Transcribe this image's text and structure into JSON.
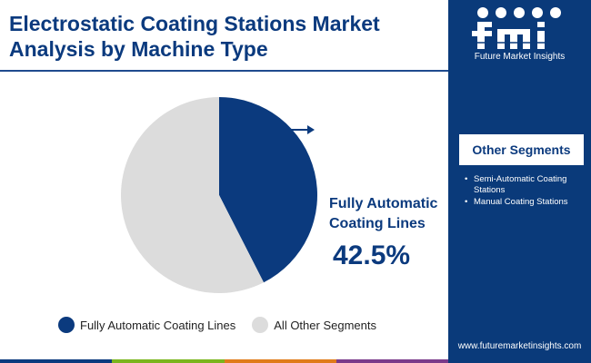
{
  "title": "Electrostatic Coating Stations Market Analysis by Machine Type",
  "colors": {
    "primary": "#0b3a7e",
    "other_segments": "#dcdcdc",
    "sidebar": "#0a3a7a"
  },
  "chart_data": {
    "type": "pie",
    "title": "Electrostatic Coating Stations Market Analysis by Machine Type",
    "slices": [
      {
        "label": "Fully Automatic Coating Lines",
        "value": 42.5,
        "color": "#0b3a7e"
      },
      {
        "label": "All Other Segments",
        "value": 57.5,
        "color": "#dcdcdc"
      }
    ],
    "callout": {
      "label": "Fully Automatic Coating Lines",
      "value_text": "42.5%"
    },
    "legend": [
      "Fully Automatic Coating Lines",
      "All Other Segments"
    ],
    "legend_position": "bottom"
  },
  "sidebar": {
    "logo_text": "Future Market Insights",
    "other_segments_title": "Other Segments",
    "other_segments": [
      "Semi-Automatic Coating Stations",
      "Manual Coating Stations"
    ],
    "website": "www.futuremarketinsights.com"
  },
  "bottom_bar_colors": [
    "#0b3a7e",
    "#7ab51d",
    "#e07b1a",
    "#7a3a8a"
  ]
}
